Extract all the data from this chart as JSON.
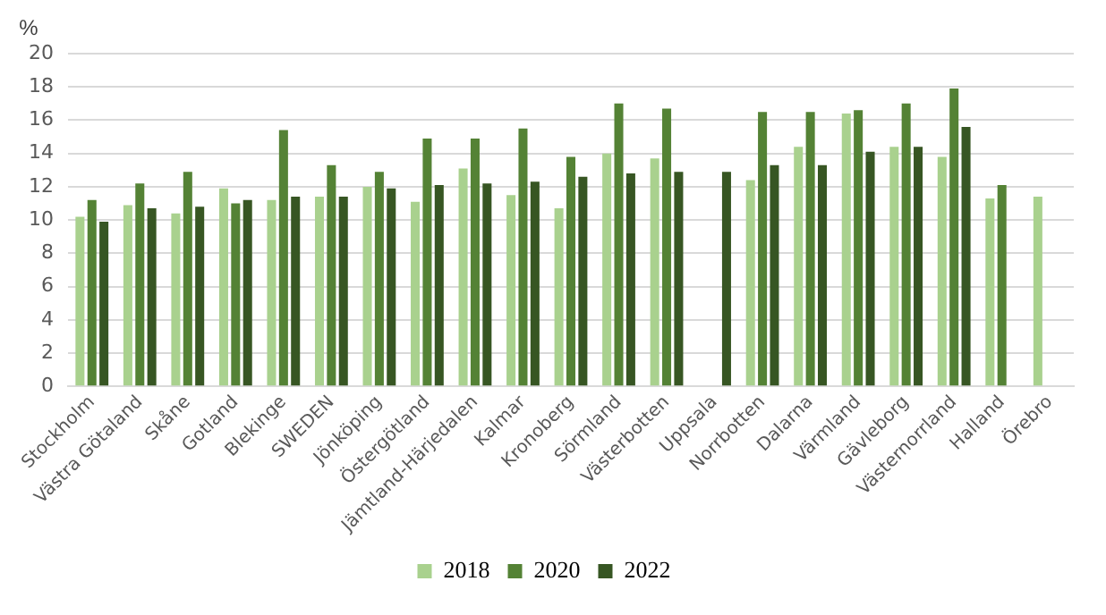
{
  "chart_data": {
    "type": "bar",
    "ylabel": "%",
    "categories": [
      "Stockholm",
      "Västra Götaland",
      "Skåne",
      "Gotland",
      "Blekinge",
      "SWEDEN",
      "Jönköping",
      "Östergötland",
      "Jämtland-Härjedalen",
      "Kalmar",
      "Kronoberg",
      "Sörmland",
      "Västerbotten",
      "Uppsala",
      "Norrbotten",
      "Dalarna",
      "Värmland",
      "Gävleborg",
      "Västernorrland",
      "Halland",
      "Örebro"
    ],
    "series": [
      {
        "name": "2018",
        "color": "#a9d18e",
        "values": [
          10.2,
          10.9,
          10.4,
          11.9,
          11.2,
          11.4,
          12.0,
          11.1,
          13.1,
          11.5,
          10.7,
          14.0,
          13.7,
          null,
          12.4,
          14.4,
          16.4,
          14.4,
          13.8,
          11.3,
          11.4
        ]
      },
      {
        "name": "2020",
        "color": "#548235",
        "values": [
          11.2,
          12.2,
          12.9,
          11.0,
          15.4,
          13.3,
          12.9,
          14.9,
          14.9,
          15.5,
          13.8,
          17.0,
          16.7,
          null,
          16.5,
          16.5,
          16.6,
          17.0,
          17.9,
          12.1,
          null
        ]
      },
      {
        "name": "2022",
        "color": "#375623",
        "values": [
          9.9,
          10.7,
          10.8,
          11.2,
          11.4,
          11.4,
          11.9,
          12.1,
          12.2,
          12.3,
          12.6,
          12.8,
          12.9,
          12.9,
          13.3,
          13.3,
          14.1,
          14.4,
          15.6,
          null,
          null
        ]
      }
    ],
    "ylim": [
      0,
      20
    ],
    "yticks": [
      0,
      2,
      4,
      6,
      8,
      10,
      12,
      14,
      16,
      18,
      20
    ],
    "grid": "y",
    "legend": "bottom"
  }
}
